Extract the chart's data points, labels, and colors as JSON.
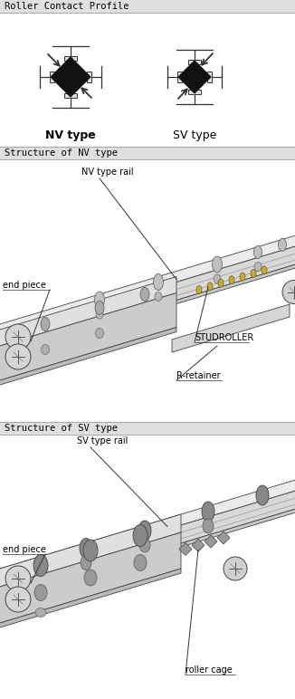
{
  "title1": "Roller Contact Profile",
  "title2": "Structure of NV type",
  "title3": "Structure of SV type",
  "nv_type_label": "NV type",
  "sv_type_label": "SV type",
  "nv_rail_label": "NV type rail",
  "sv_rail_label": "SV type rail",
  "end_piece_label1": "end piece",
  "end_piece_label2": "end piece",
  "studroller_label": "STUDROLLER",
  "rretainer_label": "R-retainer",
  "roller_cage_label": "roller cage",
  "white": "#ffffff",
  "black": "#000000",
  "near_black": "#111111",
  "dark": "#333333",
  "mid": "#888888",
  "light": "#cccccc",
  "section_bg": "#e0e0e0",
  "rail_top": "#f0f0f0",
  "rail_side": "#d8d8d8",
  "rail_front": "#e4e4e4",
  "hole_color": "#b0b0b0",
  "screw_color": "#d0d0d0"
}
